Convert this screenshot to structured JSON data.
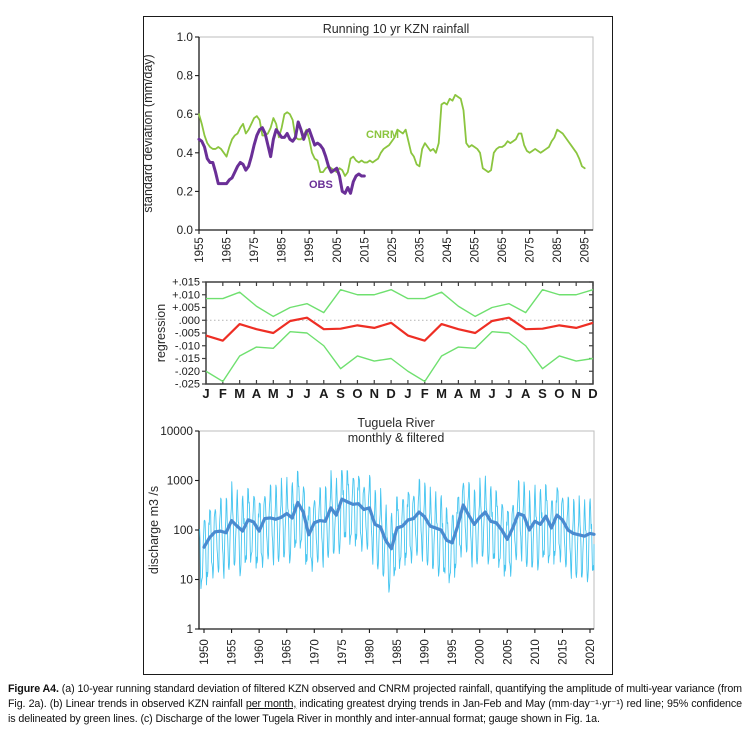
{
  "figure_caption": {
    "segments": [
      {
        "text": "Figure A4.",
        "bold": true
      },
      {
        "text": " (a) 10-year running standard deviation of filtered KZN observed and CNRM projected rainfall, quantifying the amplitude of multi-year variance (from Fig. 2a). (b) Linear trends in observed KZN rainfall "
      },
      {
        "text": "per month,",
        "underline": true
      },
      {
        "text": " indicating greatest drying trends in Jan-Feb and May (mm·day⁻¹·yr⁻¹) red line; 95% confidence is delineated by green lines. (c) Discharge of the lower Tugela River in monthly and inter-annual format; gauge shown in Fig. 1a."
      }
    ]
  },
  "colors": {
    "cnrm_green": "#8bc53f",
    "obs_purple": "#6a2f97",
    "trend_red": "#ee2e24",
    "confidence_green": "#6fe06f",
    "monthly_blue": "#45c5f0",
    "filtered_blue": "#4a8bd0",
    "frame_light": "#bdbdbd",
    "frame_dark": "#3f3f3f",
    "axis_black": "#1a1a1a",
    "zero_dotted": "#b3b3b3"
  },
  "chart_data": [
    {
      "panel": "a",
      "type": "line",
      "title": "Running 10 yr KZN rainfall",
      "ylabel": "standard deviation (mm/day)",
      "ylim": [
        0.0,
        1.0
      ],
      "ytick_labels": [
        "0.0",
        "0.2",
        "0.4",
        "0.6",
        "0.8",
        "1.0"
      ],
      "xlim": [
        1955,
        2098
      ],
      "xticks": [
        1955,
        1965,
        1975,
        1985,
        1995,
        2005,
        2015,
        2025,
        2035,
        2045,
        2055,
        2065,
        2075,
        2085,
        2095
      ],
      "grid": false,
      "legend_position": "inline-labels",
      "series": [
        {
          "name": "CNRM",
          "color_key": "cnrm_green",
          "start_year": 1955,
          "values": [
            0.6,
            0.55,
            0.49,
            0.45,
            0.43,
            0.42,
            0.42,
            0.43,
            0.42,
            0.4,
            0.38,
            0.43,
            0.47,
            0.49,
            0.5,
            0.53,
            0.55,
            0.5,
            0.52,
            0.55,
            0.58,
            0.59,
            0.57,
            0.49,
            0.49,
            0.5,
            0.53,
            0.58,
            0.55,
            0.48,
            0.53,
            0.6,
            0.61,
            0.6,
            0.57,
            0.48,
            0.47,
            0.47,
            0.49,
            0.52,
            0.47,
            0.4,
            0.37,
            0.36,
            0.3,
            0.3,
            0.32,
            0.33,
            0.32,
            0.31,
            0.3,
            0.32,
            0.31,
            0.28,
            0.3,
            0.37,
            0.38,
            0.36,
            0.35,
            0.36,
            0.35,
            0.35,
            0.36,
            0.35,
            0.36,
            0.37,
            0.4,
            0.42,
            0.43,
            0.44,
            0.46,
            0.48,
            0.52,
            0.51,
            0.5,
            0.52,
            0.46,
            0.4,
            0.38,
            0.34,
            0.33,
            0.42,
            0.45,
            0.43,
            0.41,
            0.42,
            0.4,
            0.45,
            0.65,
            0.66,
            0.65,
            0.68,
            0.67,
            0.7,
            0.69,
            0.68,
            0.62,
            0.45,
            0.43,
            0.44,
            0.43,
            0.42,
            0.4,
            0.32,
            0.31,
            0.3,
            0.31,
            0.4,
            0.42,
            0.43,
            0.43,
            0.44,
            0.46,
            0.45,
            0.46,
            0.47,
            0.5,
            0.5,
            0.44,
            0.41,
            0.4,
            0.41,
            0.42,
            0.41,
            0.4,
            0.41,
            0.42,
            0.43,
            0.46,
            0.48,
            0.52,
            0.51,
            0.5,
            0.48,
            0.46,
            0.44,
            0.42,
            0.4,
            0.37,
            0.33,
            0.32
          ]
        },
        {
          "name": "OBS",
          "color_key": "obs_purple",
          "start_year": 1955,
          "values": [
            0.47,
            0.46,
            0.43,
            0.37,
            0.35,
            0.35,
            0.3,
            0.24,
            0.24,
            0.24,
            0.24,
            0.26,
            0.27,
            0.3,
            0.33,
            0.35,
            0.34,
            0.31,
            0.33,
            0.38,
            0.44,
            0.49,
            0.52,
            0.53,
            0.5,
            0.44,
            0.38,
            0.47,
            0.52,
            0.5,
            0.48,
            0.48,
            0.5,
            0.47,
            0.46,
            0.48,
            0.56,
            0.52,
            0.47,
            0.51,
            0.52,
            0.48,
            0.44,
            0.45,
            0.44,
            0.42,
            0.38,
            0.33,
            0.3,
            0.31,
            0.32,
            0.28,
            0.2,
            0.19,
            0.22,
            0.19,
            0.25,
            0.28,
            0.29,
            0.28,
            0.28
          ]
        }
      ]
    },
    {
      "panel": "b",
      "type": "line",
      "title": "",
      "ylabel": "regression",
      "ylim": [
        -0.025,
        0.015
      ],
      "ytick_labels": [
        "+.015",
        "+.010",
        "+.005",
        ".000",
        "-.005",
        "-.010",
        "-.015",
        "-.020",
        "-.025"
      ],
      "ytick_values": [
        0.015,
        0.01,
        0.005,
        0.0,
        -0.005,
        -0.01,
        -0.015,
        -0.02,
        -0.025
      ],
      "zero_line": 0,
      "month_labels": [
        "J",
        "F",
        "M",
        "A",
        "M",
        "J",
        "J",
        "A",
        "S",
        "O",
        "N",
        "D",
        "J",
        "F",
        "M",
        "A",
        "M",
        "J",
        "J",
        "A",
        "S",
        "O",
        "N",
        "D"
      ],
      "series": [
        {
          "name": "95% confidence upper",
          "color_key": "confidence_green",
          "values": [
            0.0085,
            0.0085,
            0.011,
            0.0055,
            0.0015,
            0.005,
            0.0065,
            0.003,
            0.012,
            0.01,
            0.01,
            0.012,
            0.0085,
            0.0085,
            0.011,
            0.0055,
            0.0015,
            0.005,
            0.0065,
            0.003,
            0.012,
            0.01,
            0.01,
            0.012
          ]
        },
        {
          "name": "95% confidence lower",
          "color_key": "confidence_green",
          "values": [
            -0.02,
            -0.024,
            -0.014,
            -0.0105,
            -0.011,
            -0.0045,
            -0.005,
            -0.01,
            -0.019,
            -0.014,
            -0.016,
            -0.015,
            -0.02,
            -0.024,
            -0.014,
            -0.0105,
            -0.011,
            -0.0045,
            -0.005,
            -0.01,
            -0.019,
            -0.014,
            -0.016,
            -0.015
          ]
        },
        {
          "name": "monthly rainfall trend",
          "color_key": "trend_red",
          "values": [
            -0.006,
            -0.008,
            -0.0015,
            -0.0035,
            -0.005,
            -0.0003,
            0.001,
            -0.0035,
            -0.0033,
            -0.002,
            -0.003,
            -0.001,
            -0.006,
            -0.008,
            -0.0015,
            -0.0035,
            -0.005,
            -0.0003,
            0.001,
            -0.0035,
            -0.0033,
            -0.002,
            -0.003,
            -0.001
          ]
        }
      ]
    },
    {
      "panel": "c",
      "type": "line_log",
      "title": "Tuguela River",
      "subtitle": "monthly & filtered",
      "ylabel": "discharge m3 /s",
      "ylim": [
        1,
        10000
      ],
      "ytick_labels": [
        "1",
        "10",
        "100",
        "1000",
        "10000"
      ],
      "xlim": [
        1949,
        2021
      ],
      "xticks": [
        1950,
        1955,
        1960,
        1965,
        1970,
        1975,
        1980,
        1985,
        1990,
        1995,
        2000,
        2005,
        2010,
        2015,
        2020
      ],
      "filtered_series": {
        "name": "filtered (inter-annual)",
        "color_key": "filtered_blue",
        "start_year": 1950,
        "values": [
          45,
          70,
          92,
          95,
          88,
          155,
          120,
          95,
          160,
          145,
          95,
          170,
          175,
          165,
          180,
          215,
          175,
          360,
          230,
          80,
          140,
          155,
          150,
          280,
          200,
          420,
          370,
          330,
          340,
          260,
          280,
          130,
          115,
          60,
          42,
          110,
          120,
          160,
          170,
          230,
          185,
          120,
          110,
          100,
          62,
          55,
          120,
          320,
          200,
          130,
          180,
          230,
          150,
          140,
          100,
          65,
          110,
          215,
          195,
          100,
          150,
          130,
          190,
          110,
          200,
          160,
          100,
          85,
          80,
          75,
          85,
          82
        ]
      },
      "monthly_series": {
        "name": "monthly",
        "color_key": "monthly_blue",
        "start": 1949.2,
        "end": 2020.85,
        "seasonal_log_offsets": [
          0.58,
          0.5,
          0.3,
          -0.02,
          -0.38,
          -0.65,
          -0.82,
          -0.78,
          -0.55,
          -0.18,
          0.18,
          0.45
        ],
        "jitter": [
          0.3,
          -0.6,
          0.9,
          -0.2,
          0.5,
          -0.8,
          0.1,
          0.7,
          -0.4,
          0.2,
          -0.9,
          0.6,
          -0.1,
          0.8,
          -0.5,
          0.4,
          -0.7,
          0.95,
          -0.3,
          0.15,
          0.55,
          -0.85,
          0.65,
          -0.25
        ],
        "jitter_scale": 0.22,
        "min_log": 0.6,
        "max_log": 3.2
      }
    }
  ]
}
